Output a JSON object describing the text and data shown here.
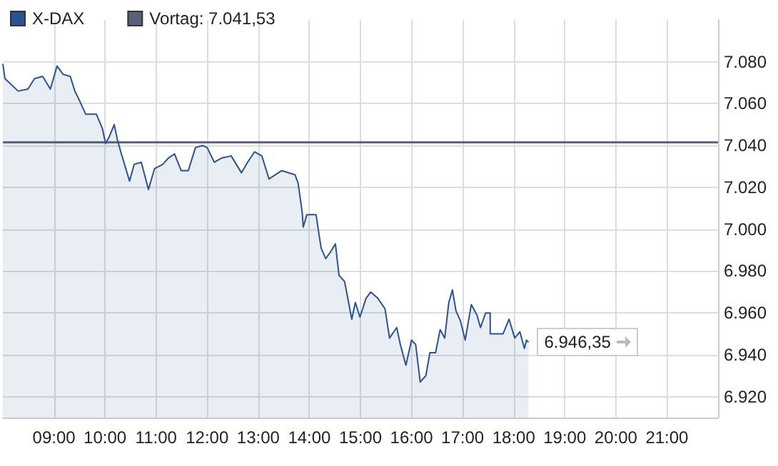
{
  "chart_data": {
    "type": "area",
    "x": [
      8.0,
      8.04,
      8.3,
      8.49,
      8.62,
      8.78,
      8.93,
      9.06,
      9.18,
      9.32,
      9.41,
      9.51,
      9.62,
      9.83,
      9.95,
      10.01,
      10.08,
      10.18,
      10.24,
      10.32,
      10.48,
      10.57,
      10.71,
      10.85,
      10.97,
      11.13,
      11.24,
      11.36,
      11.49,
      11.63,
      11.77,
      11.91,
      12.0,
      12.14,
      12.28,
      12.47,
      12.67,
      12.79,
      12.93,
      13.07,
      13.21,
      13.46,
      13.72,
      13.78,
      13.86,
      13.88,
      13.95,
      14.13,
      14.23,
      14.32,
      14.41,
      14.51,
      14.58,
      14.69,
      14.76,
      14.83,
      14.9,
      14.99,
      15.11,
      15.2,
      15.34,
      15.48,
      15.57,
      15.71,
      15.78,
      15.89,
      16.0,
      16.08,
      16.17,
      16.28,
      16.36,
      16.47,
      16.56,
      16.65,
      16.73,
      16.8,
      16.87,
      16.96,
      17.05,
      17.17,
      17.28,
      17.35,
      17.45,
      17.54,
      17.54,
      17.79,
      17.91,
      18.02,
      18.12,
      18.21,
      18.25,
      18.29
    ],
    "series": [
      {
        "name": "X-DAX",
        "color": "#2b5394",
        "values": [
          7079,
          7072,
          7066,
          7067,
          7072,
          7073,
          7067,
          7078,
          7074,
          7073,
          7066,
          7061,
          7055,
          7055,
          7048,
          7041,
          7044,
          7050,
          7043,
          7036,
          7023,
          7031,
          7032,
          7019,
          7029,
          7031,
          7034,
          7036,
          7028,
          7028,
          7039,
          7040,
          7039,
          7032,
          7034,
          7035,
          7027,
          7032,
          7037,
          7035,
          7024,
          7028,
          7026,
          7022,
          7008,
          7001,
          7007,
          7007,
          6991,
          6986,
          6989,
          6993,
          6978,
          6975,
          6966,
          6957,
          6965,
          6958,
          6967,
          6970,
          6967,
          6962,
          6948,
          6953,
          6945,
          6935,
          6947,
          6945,
          6927,
          6930,
          6941,
          6941,
          6952,
          6948,
          6965,
          6971,
          6961,
          6956,
          6947,
          6964,
          6959,
          6953,
          6960,
          6960,
          6950,
          6950,
          6957,
          6948,
          6951,
          6943,
          6947,
          6946
        ]
      }
    ],
    "xlim": [
      8,
      22
    ],
    "xticks": [
      {
        "value": 9,
        "label": "09:00"
      },
      {
        "value": 10,
        "label": "10:00"
      },
      {
        "value": 11,
        "label": "11:00"
      },
      {
        "value": 12,
        "label": "12:00"
      },
      {
        "value": 13,
        "label": "13:00"
      },
      {
        "value": 14,
        "label": "14:00"
      },
      {
        "value": 15,
        "label": "15:00"
      },
      {
        "value": 16,
        "label": "16:00"
      },
      {
        "value": 17,
        "label": "17:00"
      },
      {
        "value": 18,
        "label": "18:00"
      },
      {
        "value": 19,
        "label": "19:00"
      },
      {
        "value": 20,
        "label": "20:00"
      },
      {
        "value": 21,
        "label": "21:00"
      }
    ],
    "ylim": [
      6910,
      7100
    ],
    "yticks": [
      {
        "value": 6920,
        "label": "6.920"
      },
      {
        "value": 6940,
        "label": "6.940"
      },
      {
        "value": 6960,
        "label": "6.960"
      },
      {
        "value": 6980,
        "label": "6.980"
      },
      {
        "value": 7000,
        "label": "7.000"
      },
      {
        "value": 7020,
        "label": "7.020"
      },
      {
        "value": 7040,
        "label": "7.040"
      },
      {
        "value": 7060,
        "label": "7.060"
      },
      {
        "value": 7080,
        "label": "7.080"
      }
    ],
    "ref_lines": [
      {
        "axis": "y",
        "value": 7041.53,
        "label": "Vortag: 7.041,53",
        "color": "#5a5f7a"
      }
    ],
    "annotations": [
      {
        "text": "6.946,35",
        "x": 18.29,
        "y": 6946.35
      }
    ],
    "grid": true,
    "legend": "top left",
    "marker": "none"
  }
}
